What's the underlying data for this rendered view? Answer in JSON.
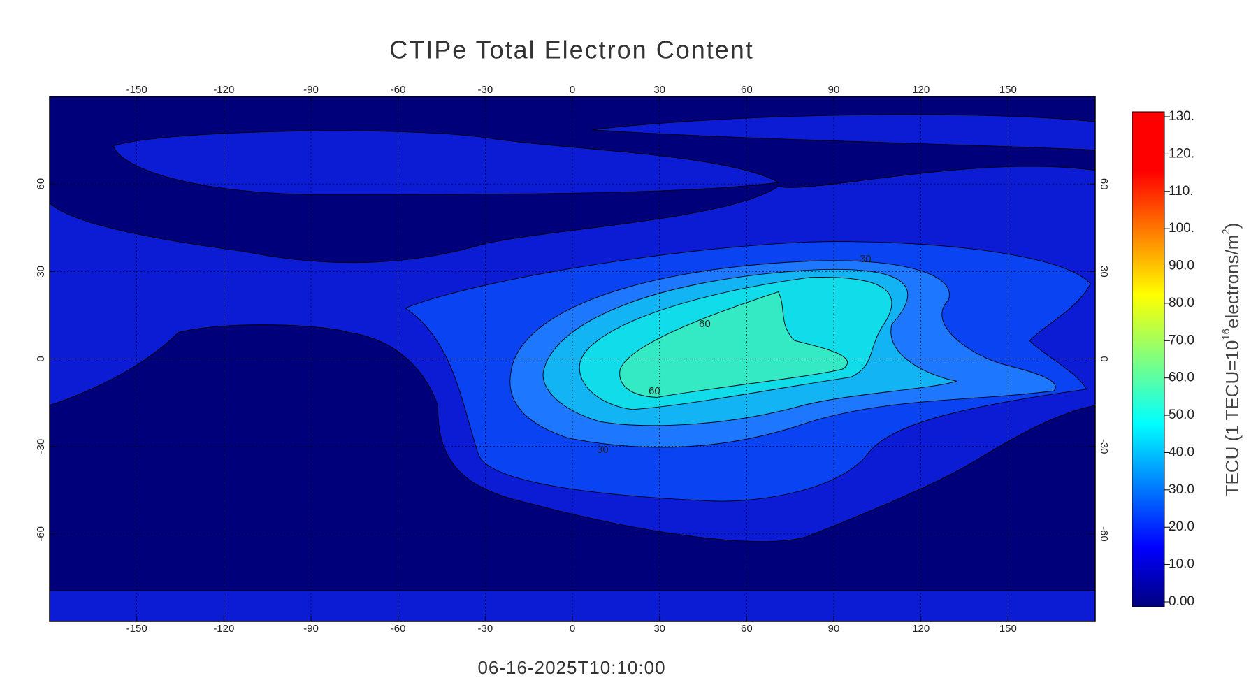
{
  "title": "CTIPe Total Electron Content",
  "timestamp": "06-16-2025T10:10:00",
  "map": {
    "xlim": [
      -180,
      180
    ],
    "ylim": [
      -90,
      90
    ],
    "xticks": [
      -150,
      -120,
      -90,
      -60,
      -30,
      0,
      30,
      60,
      90,
      120,
      150
    ],
    "yticks": [
      -60,
      -30,
      0,
      30,
      60
    ],
    "contour_labels": [
      "30",
      "60",
      "60",
      "30"
    ]
  },
  "colorbar": {
    "label": {
      "prefix": "TECU (1 TECU=10",
      "exp1": "16",
      "middle": "electrons/m",
      "exp2": "2",
      "suffix": ")"
    },
    "lim": [
      0,
      130
    ],
    "ticks": [
      {
        "value": 0,
        "label": "0.00"
      },
      {
        "value": 10,
        "label": "10.0"
      },
      {
        "value": 20,
        "label": "20.0"
      },
      {
        "value": 30,
        "label": "30.0"
      },
      {
        "value": 40,
        "label": "40.0"
      },
      {
        "value": 50,
        "label": "50.0"
      },
      {
        "value": 60,
        "label": "60.0"
      },
      {
        "value": 70,
        "label": "70.0"
      },
      {
        "value": 80,
        "label": "80.0"
      },
      {
        "value": 90,
        "label": "90.0"
      },
      {
        "value": 100,
        "label": "100."
      },
      {
        "value": 110,
        "label": "110."
      },
      {
        "value": 120,
        "label": "120."
      },
      {
        "value": 130,
        "label": "130."
      }
    ]
  }
}
